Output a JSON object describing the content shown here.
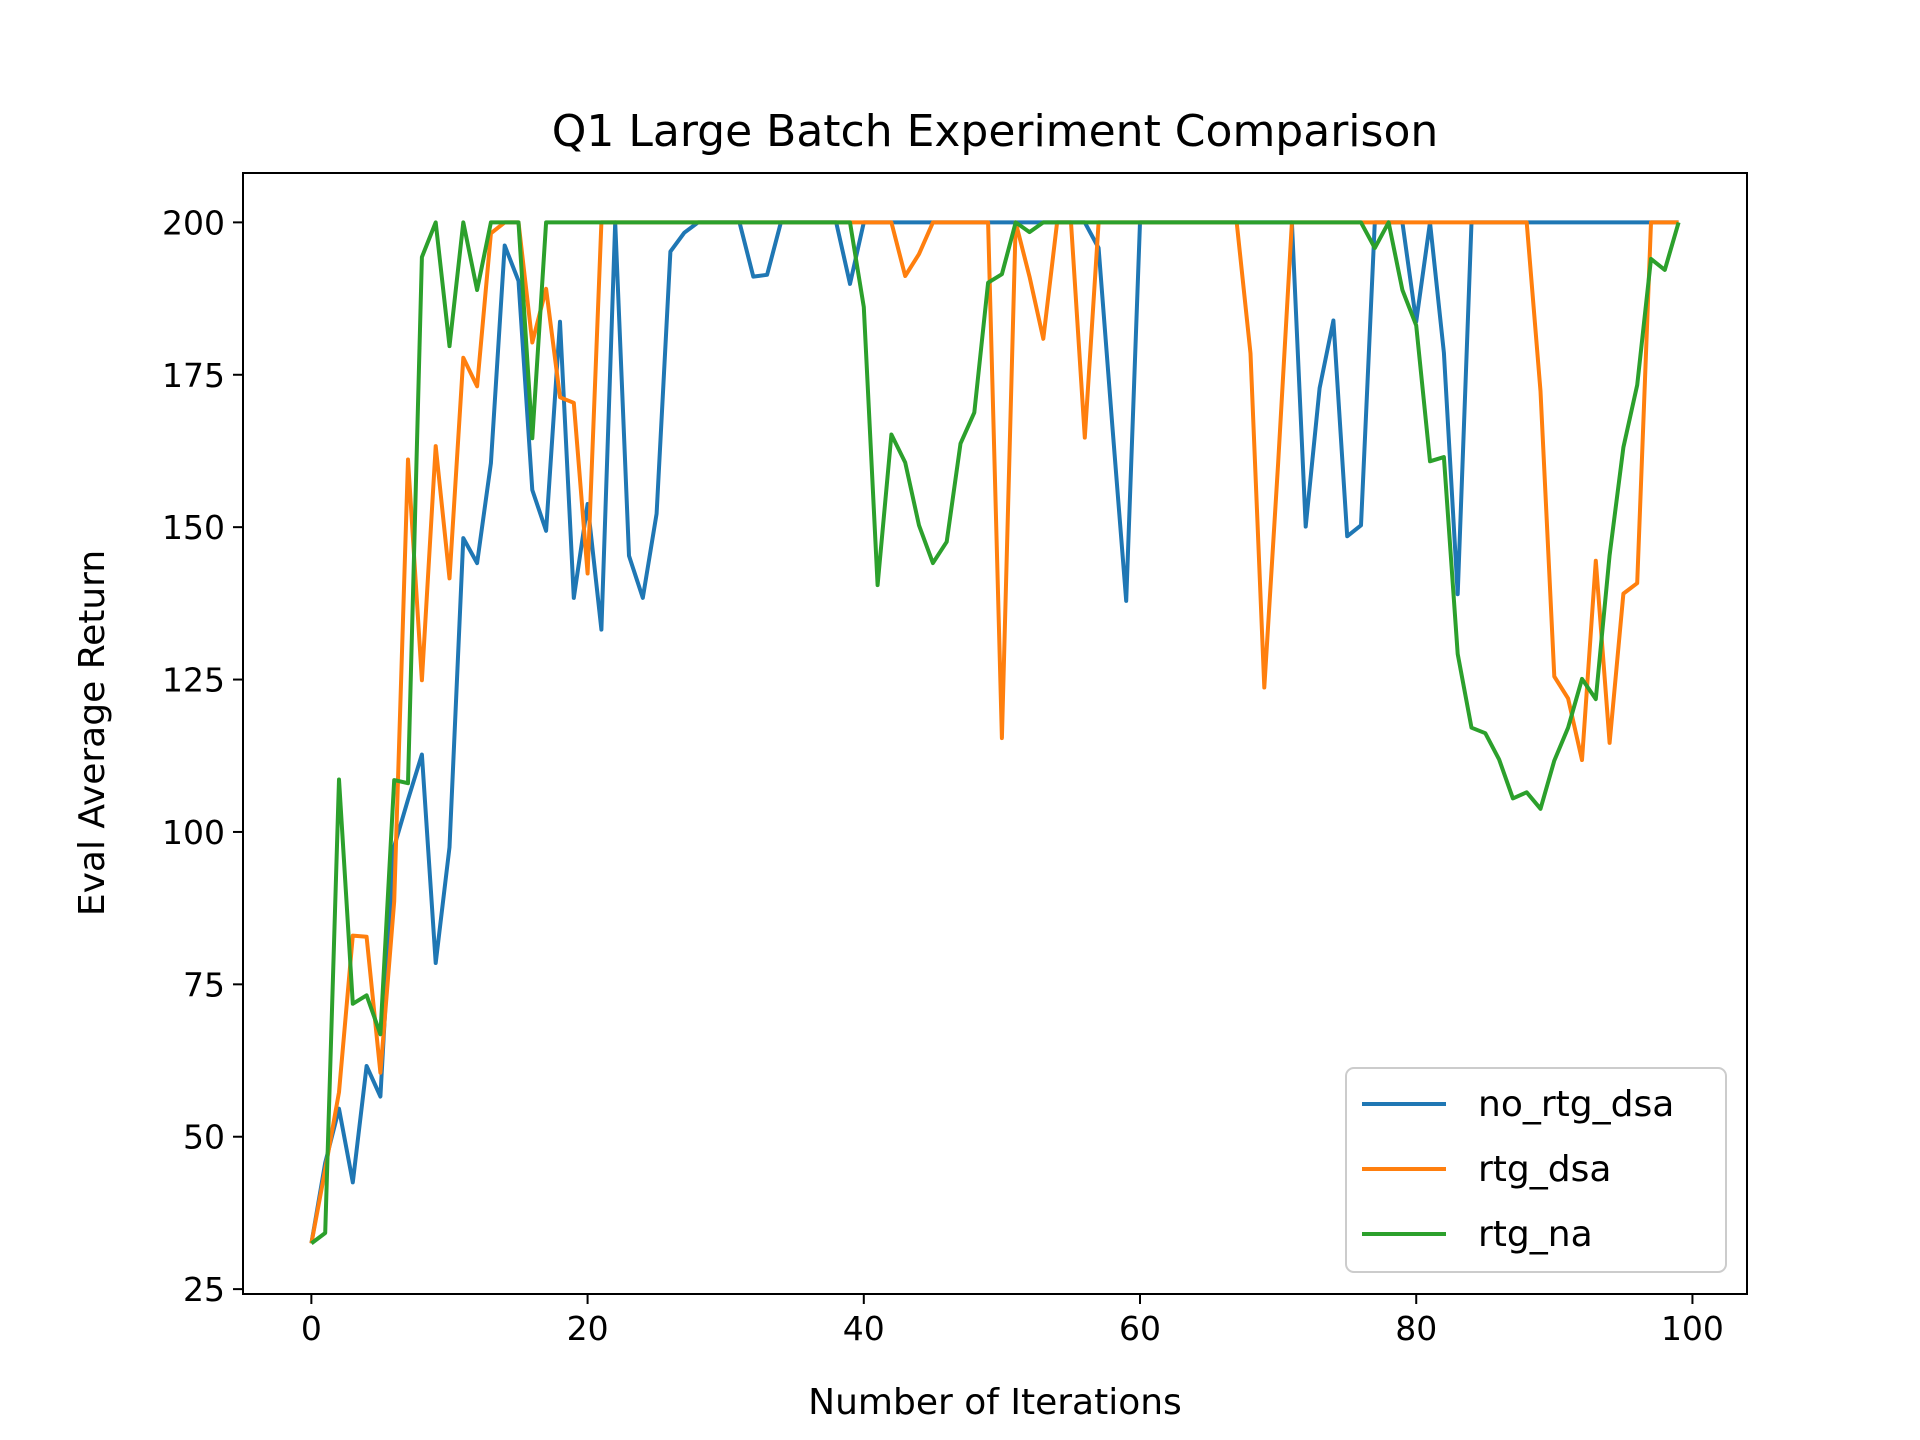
{
  "chart_data": {
    "type": "line",
    "title": "Q1 Large Batch Experiment Comparison",
    "xlabel": "Number of Iterations",
    "ylabel": "Eval Average Return",
    "xlim": [
      -4.95,
      103.95
    ],
    "ylim": [
      24.2,
      208.1
    ],
    "xticks": [
      0,
      20,
      40,
      60,
      80,
      100
    ],
    "yticks": [
      25,
      50,
      75,
      100,
      125,
      150,
      175,
      200
    ],
    "grid": false,
    "legend_position": "lower-right",
    "series": [
      {
        "name": "no_rtg_dsa",
        "color": "#1f77b4",
        "values": [
          32.5,
          45.7,
          54.6,
          42.5,
          61.6,
          56.6,
          97.6,
          105.3,
          112.7,
          78.5,
          97.5,
          148.2,
          144.1,
          160.5,
          196.2,
          190.4,
          156.1,
          149.4,
          183.7,
          138.4,
          153.8,
          133.2,
          200,
          145.3,
          138.4,
          152.2,
          195.2,
          198.3,
          200,
          200,
          200,
          200,
          191.1,
          191.4,
          200,
          200,
          200,
          200,
          200,
          189.9,
          200,
          200,
          200,
          200,
          200,
          200,
          200,
          200,
          200,
          200,
          200,
          200,
          200,
          200,
          200,
          200,
          200,
          195.8,
          166.5,
          137.9,
          200,
          200,
          200,
          200,
          200,
          200,
          200,
          200,
          200,
          200,
          200,
          200,
          150.1,
          172.8,
          183.9,
          148.5,
          150.3,
          200,
          200,
          200,
          183.7,
          200,
          178.6,
          139,
          200,
          200,
          200,
          200,
          200,
          200,
          200,
          200,
          200,
          200,
          200,
          200,
          200,
          200,
          200,
          200
        ]
      },
      {
        "name": "rtg_dsa",
        "color": "#ff7f0e",
        "values": [
          32.5,
          44.6,
          57.3,
          83,
          82.8,
          60.5,
          88.6,
          161.1,
          124.9,
          163.3,
          141.6,
          177.8,
          173.1,
          198.2,
          200,
          200,
          180.3,
          189.1,
          171.3,
          170.4,
          142.4,
          200,
          200,
          200,
          200,
          200,
          200,
          200,
          200,
          200,
          200,
          200,
          200,
          200,
          200,
          200,
          200,
          200,
          200,
          200,
          200,
          200,
          200,
          191.2,
          194.8,
          200,
          200,
          200,
          200,
          200,
          115.4,
          200,
          191.1,
          180.9,
          200,
          200,
          164.7,
          200,
          200,
          200,
          200,
          200,
          200,
          200,
          200,
          200,
          200,
          200,
          178.5,
          123.7,
          160.4,
          200,
          200,
          200,
          200,
          200,
          200,
          200,
          200,
          200,
          200,
          200,
          200,
          200,
          200,
          200,
          200,
          200,
          200,
          172.3,
          125.5,
          121.9,
          111.8,
          144.5,
          114.6,
          139.1,
          140.8,
          200,
          200,
          200
        ]
      },
      {
        "name": "rtg_na",
        "color": "#2ca02c",
        "values": [
          32.5,
          34.2,
          108.6,
          71.8,
          73.2,
          66.8,
          108.5,
          108,
          194.3,
          200,
          179.7,
          200,
          188.9,
          200,
          200,
          200,
          164.6,
          200,
          200,
          200,
          200,
          200,
          200,
          200,
          200,
          200,
          200,
          200,
          200,
          200,
          200,
          200,
          200,
          200,
          200,
          200,
          200,
          200,
          200,
          200,
          186.1,
          140.5,
          165.2,
          160.6,
          150.3,
          144.1,
          147.6,
          163.7,
          168.8,
          190.1,
          191.5,
          200,
          198.4,
          200,
          200,
          200,
          200,
          200,
          200,
          200,
          200,
          200,
          200,
          200,
          200,
          200,
          200,
          200,
          200,
          200,
          200,
          200,
          200,
          200,
          200,
          200,
          200,
          195.8,
          200,
          188.9,
          183.1,
          160.8,
          161.5,
          129.2,
          117.1,
          116.2,
          111.9,
          105.5,
          106.5,
          103.8,
          111.7,
          117.1,
          125.1,
          121.8,
          145.4,
          163.1,
          173.3,
          194,
          192.2,
          200
        ]
      }
    ]
  }
}
